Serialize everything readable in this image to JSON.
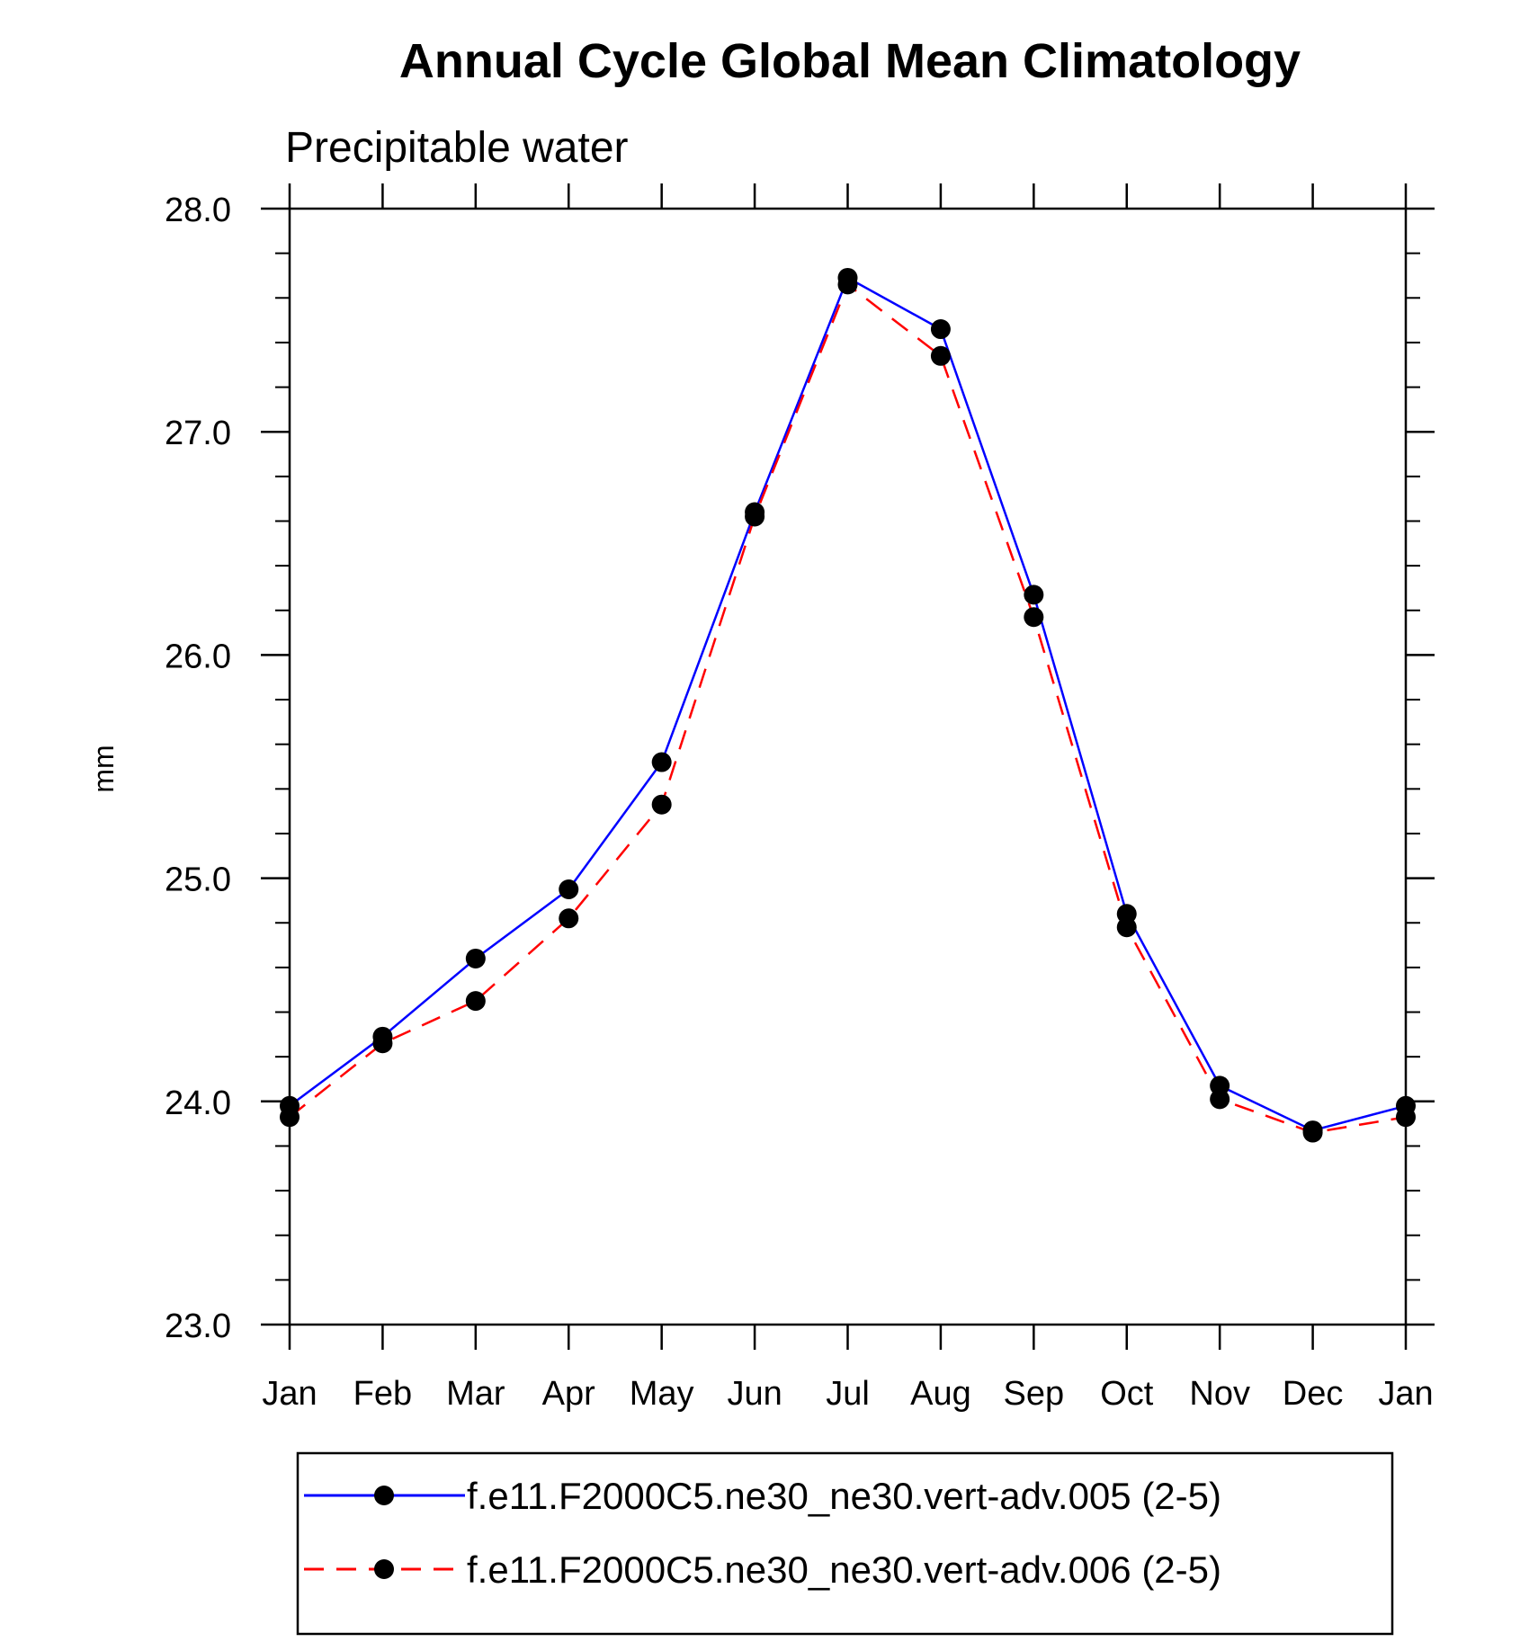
{
  "chart_data": {
    "type": "line",
    "title": "Annual Cycle Global Mean Climatology",
    "subtitle": "Precipitable water",
    "xlabel": "",
    "ylabel": "mm",
    "categories": [
      "Jan",
      "Feb",
      "Mar",
      "Apr",
      "May",
      "Jun",
      "Jul",
      "Aug",
      "Sep",
      "Oct",
      "Nov",
      "Dec",
      "Jan"
    ],
    "ylim": [
      23.0,
      28.0
    ],
    "yticks": [
      "23.0",
      "24.0",
      "25.0",
      "26.0",
      "27.0",
      "28.0"
    ],
    "grid": false,
    "legend_position": "bottom",
    "series": [
      {
        "name": "f.e11.F2000C5.ne30_ne30.vert-adv.005 (2-5)",
        "color": "#0000ff",
        "dash": "solid",
        "marker": "circle",
        "values": [
          23.98,
          24.29,
          24.64,
          24.95,
          25.52,
          26.64,
          27.69,
          27.46,
          26.27,
          24.84,
          24.07,
          23.87,
          23.98
        ]
      },
      {
        "name": "f.e11.F2000C5.ne30_ne30.vert-adv.006 (2-5)",
        "color": "#ff0000",
        "dash": "dashed",
        "marker": "circle",
        "values": [
          23.93,
          24.26,
          24.45,
          24.82,
          25.33,
          26.62,
          27.66,
          27.34,
          26.17,
          24.78,
          24.01,
          23.86,
          23.93
        ]
      }
    ]
  }
}
